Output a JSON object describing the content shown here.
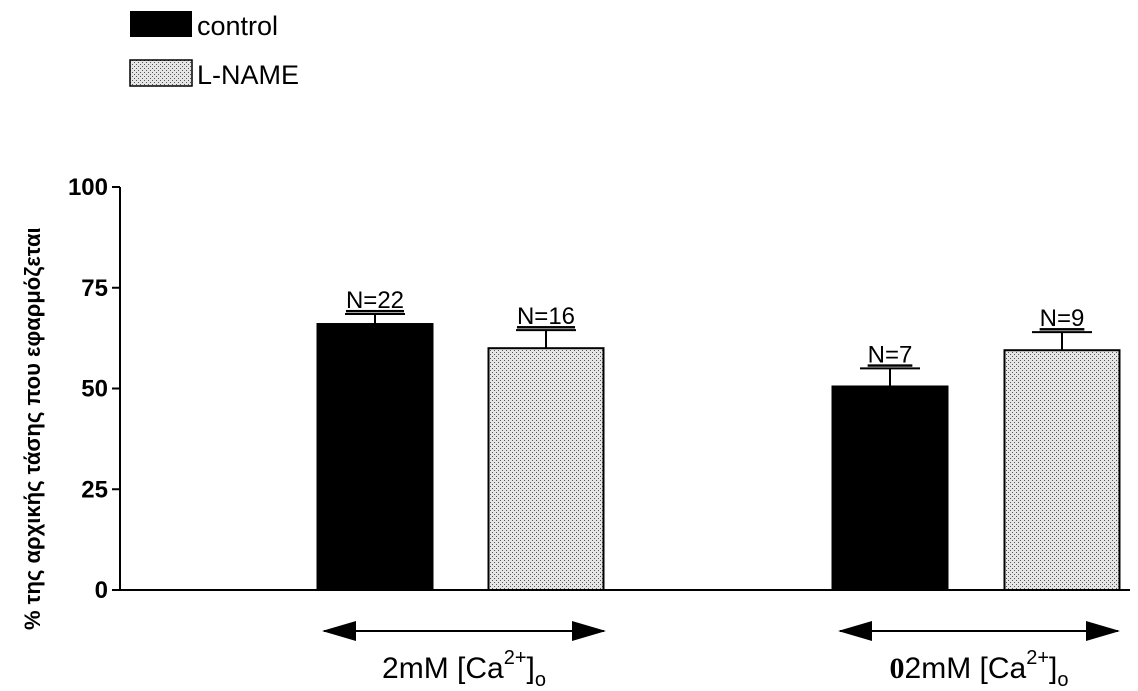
{
  "chart_data": {
    "type": "bar",
    "ylabel": "% της αρχικής τάσης που εφαρμόζεται",
    "xlabel": "",
    "ylim": [
      0,
      100
    ],
    "yticks": [
      0,
      25,
      50,
      75,
      100
    ],
    "grid": false,
    "legend_position": "top-left",
    "categories": [
      "",
      "2mM [Ca2+]o control",
      "2mM [Ca2+]o L-NAME",
      "",
      "02mM [Ca2+]o control",
      "02mM [Ca2+]o L-NAME"
    ],
    "series": [
      {
        "name": "control",
        "color": "#000000",
        "pattern": "solid"
      },
      {
        "name": "L-NAME",
        "color": "#c8c8c8",
        "pattern": "dotted"
      }
    ],
    "bars": [
      {
        "series": "",
        "value": 0,
        "error": 0,
        "n_label": ""
      },
      {
        "series": "control",
        "value": 66,
        "error": 2.5,
        "n_label": "N=22"
      },
      {
        "series": "L-NAME",
        "value": 60,
        "error": 4.5,
        "n_label": "N=16"
      },
      {
        "series": "",
        "value": 0,
        "error": 0,
        "n_label": ""
      },
      {
        "series": "control",
        "value": 50.5,
        "error": 4.5,
        "n_label": "N=7"
      },
      {
        "series": "L-NAME",
        "value": 59.5,
        "error": 4.5,
        "n_label": "N=9"
      }
    ],
    "groups": [
      {
        "prefix": "",
        "text": "2mM [Ca",
        "sup": "2+",
        "close": "]",
        "sub": "o"
      },
      {
        "prefix": "0",
        "text": "2mM [Ca",
        "sup": "2+",
        "close": "]",
        "sub": "o"
      }
    ]
  }
}
